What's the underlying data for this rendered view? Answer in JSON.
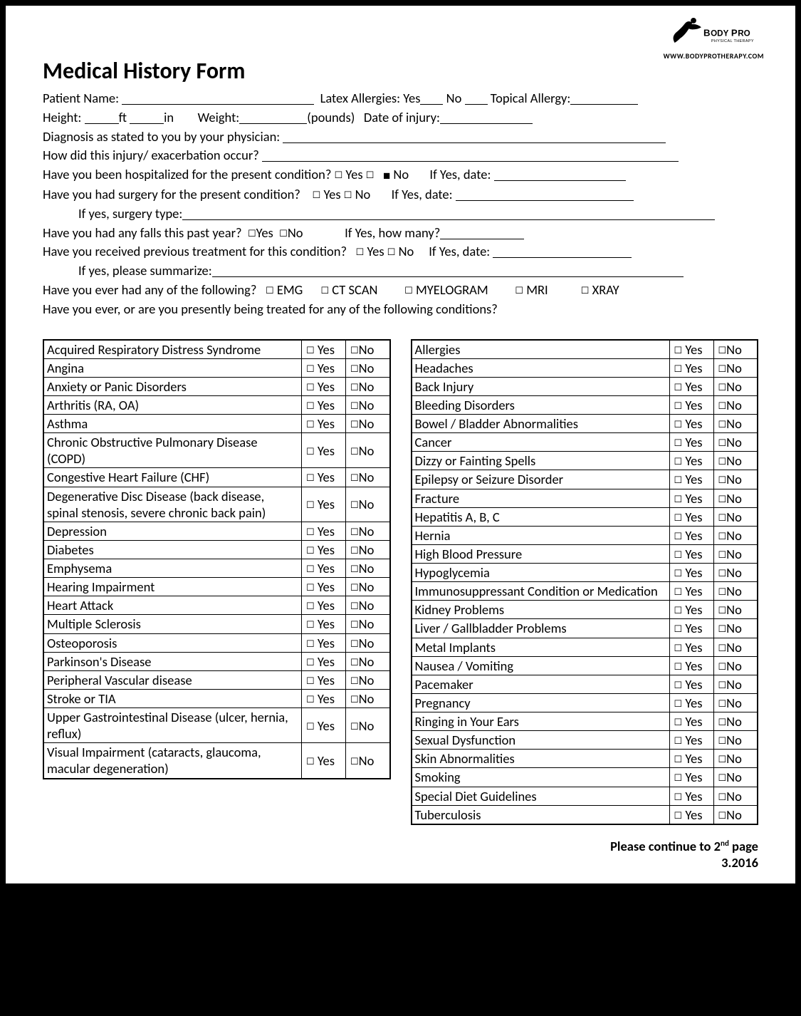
{
  "header": {
    "logo_text_main": "BODYPRO",
    "logo_text_sub": "PHYSICAL THERAPY",
    "url": "WWW.BODYPROTHERAPY.COM"
  },
  "title": "Medical History Form",
  "form": {
    "patient_name": "Patient Name:",
    "latex": "Latex Allergies: Yes",
    "no": "No",
    "topical": "Topical Allergy:",
    "height": "Height:",
    "ft": "ft",
    "in": "in",
    "weight": "Weight:",
    "pounds": "(pounds)",
    "doi": "Date of injury:",
    "diagnosis": "Diagnosis as stated to you by your physician:",
    "how_injury": "How did this injury/ exacerbation occur?",
    "hospitalized": "Have you been hospitalized for the present condition?",
    "yes": " Yes ",
    "no_lbl": " No",
    "if_yes_date": "If Yes, date:",
    "surgery": "Have you had surgery for the present condition?",
    "surgery_type": "If yes, surgery type:",
    "falls": "Have you had any falls this past year?",
    "cyes": "Yes",
    "cno": "No",
    "how_many": "If Yes, how many?",
    "prev_treat": "Have you received previous treatment for this condition?",
    "summarize": "If yes, please summarize:",
    "ever_following": "Have you ever had any of the following?",
    "emg": " EMG",
    "ct": " CT SCAN",
    "myelogram": " MYELOGRAM",
    "mri": " MRI",
    "xray": " XRAY",
    "presently": "Have you ever, or are you presently being treated for any of the following conditions?"
  },
  "yes_label": " Yes",
  "no_label": "No",
  "table_left": [
    "Acquired Respiratory Distress Syndrome",
    "Angina",
    "Anxiety or Panic Disorders",
    "Arthritis (RA, OA)",
    "Asthma",
    "Chronic Obstructive Pulmonary Disease (COPD)",
    "Congestive Heart Failure (CHF)",
    "Degenerative Disc Disease (back disease, spinal stenosis, severe chronic back pain)",
    "Depression",
    "Diabetes",
    "Emphysema",
    "Hearing Impairment",
    "Heart Attack",
    "Multiple Sclerosis",
    "Osteoporosis",
    "Parkinson's Disease",
    "Peripheral Vascular disease",
    "Stroke or TIA",
    "Upper Gastrointestinal Disease (ulcer, hernia, reflux)",
    "Visual Impairment (cataracts, glaucoma, macular degeneration)"
  ],
  "table_right": [
    "Allergies",
    "Headaches",
    "Back Injury",
    "Bleeding Disorders",
    "Bowel / Bladder Abnormalities",
    "Cancer",
    "Dizzy or Fainting Spells",
    "Epilepsy or Seizure Disorder",
    "Fracture",
    "Hepatitis A, B, C",
    "Hernia",
    "High Blood Pressure",
    "Hypoglycemia",
    "Immunosuppressant Condition or Medication",
    "Kidney Problems",
    "Liver / Gallbladder Problems",
    "Metal Implants",
    "Nausea / Vomiting",
    "Pacemaker",
    "Pregnancy",
    "Ringing in Your Ears",
    "Sexual Dysfunction",
    "Skin Abnormalities",
    "Smoking",
    "Special Diet Guidelines",
    "Tuberculosis"
  ],
  "footer": {
    "continue": "Please continue to 2",
    "nd": "nd",
    "page": " page",
    "date": "3.2016"
  },
  "colors": {
    "text": "#000000",
    "background": "#ffffff",
    "page_wrap": "#000000"
  }
}
